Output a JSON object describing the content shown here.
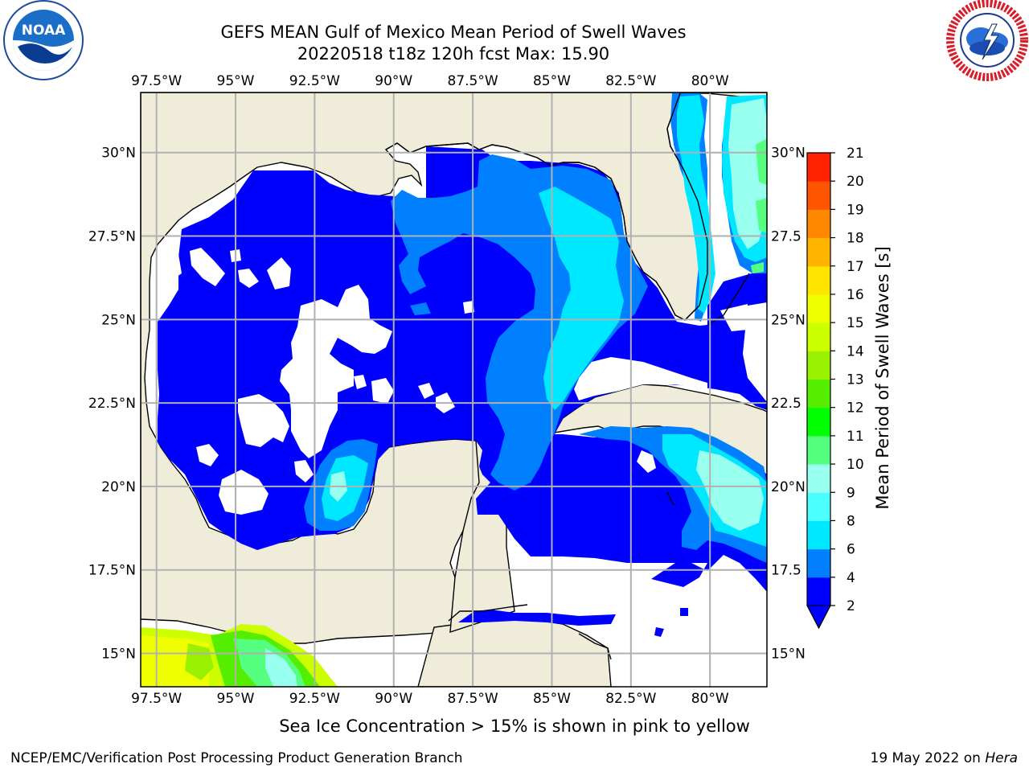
{
  "title_line1": "GEFS MEAN Gulf of Mexico Mean Period of Swell Waves",
  "title_line2": "20220518 t18z 120h fcst   Max: 15.90",
  "note": "Sea Ice Concentration > 15% is shown in pink to yellow",
  "footer_left": "NCEP/EMC/Verification Post Processing Product Generation Branch",
  "footer_right_date": "19 May 2022 on ",
  "footer_right_host": "Hera",
  "logos": {
    "left": {
      "icon": "noaa-logo-icon",
      "text": "NOAA"
    },
    "right": {
      "icon": "nws-logo-icon",
      "text": "NATIONAL WEATHER SERVICE"
    }
  },
  "map": {
    "lon_ticks": [
      "97.5°W",
      "95°W",
      "92.5°W",
      "90°W",
      "87.5°W",
      "85°W",
      "82.5°W",
      "80°W"
    ],
    "lon_values": [
      -97.5,
      -95,
      -92.5,
      -90,
      -87.5,
      -85,
      -82.5,
      -80
    ],
    "lat_ticks_left": [
      "30°N",
      "27.5°N",
      "25°N",
      "22.5°N",
      "20°N",
      "17.5°N",
      "15°N"
    ],
    "lat_ticks_right": [
      "30°N",
      "27.5",
      "25°N",
      "22.5",
      "20°N",
      "17.5",
      "15°N"
    ],
    "lat_values": [
      30,
      27.5,
      25,
      22.5,
      20,
      17.5,
      15
    ],
    "extent": {
      "lon_min": -98,
      "lon_max": -78.2,
      "lat_min": 14,
      "lat_max": 31.8
    },
    "colors": {
      "land": "#efedda",
      "ocean_blank": "#ffffff",
      "grid": "#b0b0b0",
      "coast": "#000000"
    }
  },
  "colorbar": {
    "label": "Mean Period of Swell Waves [s]",
    "levels": [
      "2",
      "4",
      "6",
      "8",
      "9",
      "10",
      "11",
      "12",
      "13",
      "14",
      "15",
      "16",
      "17",
      "18",
      "19",
      "20",
      "21"
    ],
    "colors": [
      "#0000ff",
      "#0080ff",
      "#00e8ff",
      "#4cffff",
      "#99ffee",
      "#55ff80",
      "#00ff00",
      "#55ee00",
      "#99f000",
      "#ccff00",
      "#f0ff00",
      "#ffe400",
      "#ffb400",
      "#ff8800",
      "#ff5500",
      "#ff2200",
      "#ff0000"
    ],
    "extend_min_color": "#0000ff"
  }
}
